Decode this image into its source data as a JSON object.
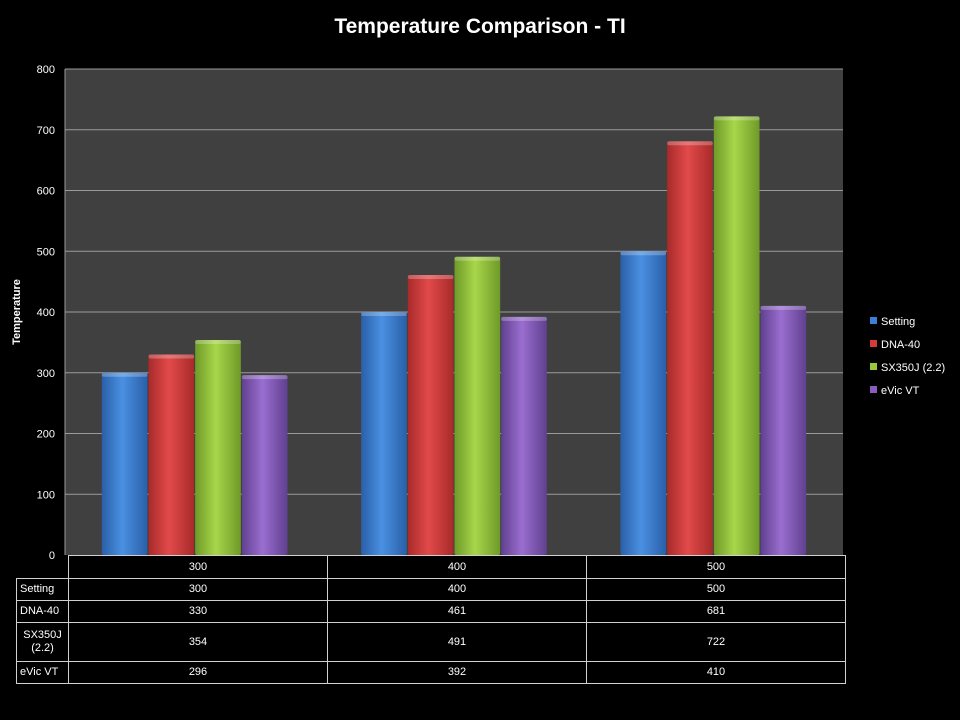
{
  "chart_data": {
    "type": "bar",
    "title": "Temperature Comparison - TI",
    "xlabel": "",
    "ylabel": "Temperature",
    "categories": [
      "300",
      "400",
      "500"
    ],
    "series": [
      {
        "name": "Setting",
        "values": [
          300,
          400,
          500
        ],
        "color": "#3b7fd6"
      },
      {
        "name": "DNA-40",
        "values": [
          330,
          461,
          681
        ],
        "color": "#d63b3b"
      },
      {
        "name": "SX350J (2.2)",
        "values": [
          354,
          491,
          722
        ],
        "color": "#96c83c"
      },
      {
        "name": "eVic VT",
        "values": [
          296,
          392,
          410
        ],
        "color": "#8a5cbf"
      }
    ],
    "ylim": [
      0,
      800
    ],
    "yticks": [
      0,
      100,
      200,
      300,
      400,
      500,
      600,
      700,
      800
    ],
    "grid": true,
    "legend_position": "right",
    "plot_background": "#404040"
  },
  "table": {
    "header": [
      "300",
      "400",
      "500"
    ],
    "rows": [
      {
        "label": "Setting",
        "values": [
          "300",
          "400",
          "500"
        ]
      },
      {
        "label": "DNA-40",
        "values": [
          "330",
          "461",
          "681"
        ]
      },
      {
        "label": "SX350J (2.2)",
        "values": [
          "354",
          "491",
          "722"
        ]
      },
      {
        "label": "eVic VT",
        "values": [
          "296",
          "392",
          "410"
        ]
      }
    ]
  }
}
